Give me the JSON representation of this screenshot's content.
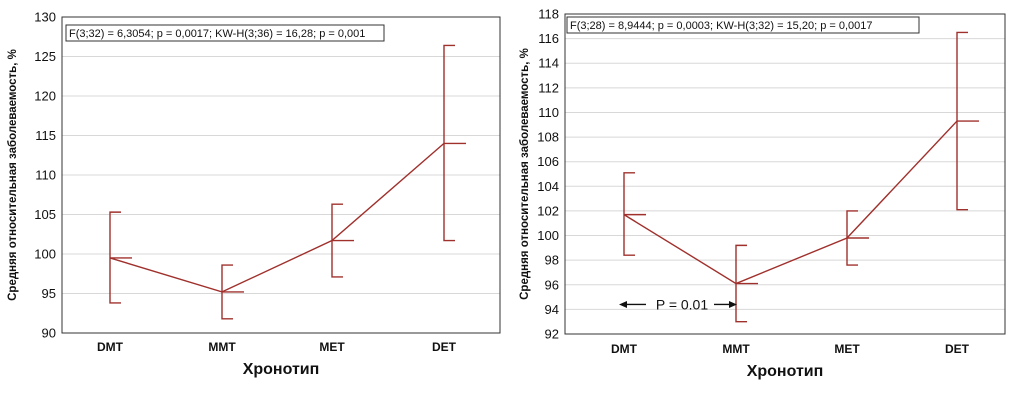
{
  "chart_data": [
    {
      "type": "line",
      "title": "",
      "stat_text": "F(3;32) = 6,3054; p = 0,0017; KW-H(3;36) = 16,28; p = 0,001",
      "xlabel": "Хронотип",
      "ylabel": "Средняя относительная заболеваемость, %",
      "categories": [
        "DMT",
        "MMT",
        "MET",
        "DET"
      ],
      "ylim": [
        90,
        130
      ],
      "yticks": [
        "90",
        "95",
        "100",
        "105",
        "110",
        "115",
        "120",
        "125",
        "130"
      ],
      "grid": true,
      "series": [
        {
          "values": [
            99.5,
            95.2,
            101.7,
            114.0
          ],
          "lower": [
            93.8,
            91.8,
            97.1,
            101.7
          ],
          "upper": [
            105.3,
            98.6,
            106.3,
            126.4
          ]
        }
      ],
      "colors": {
        "series": "#a0302c"
      }
    },
    {
      "type": "line",
      "title": "",
      "stat_text": "F(3;28) = 8,9444; p = 0,0003; KW-H(3;32) = 15,20; p = 0,0017",
      "xlabel": "Хронотип",
      "ylabel": "Средняя относительная заболеваемость, %",
      "categories": [
        "DMT",
        "MMT",
        "MET",
        "DET"
      ],
      "ylim": [
        92,
        118
      ],
      "yticks": [
        "92",
        "94",
        "96",
        "98",
        "100",
        "102",
        "104",
        "106",
        "108",
        "110",
        "112",
        "114",
        "116",
        "118"
      ],
      "grid": true,
      "annotation": "P = 0.01",
      "series": [
        {
          "values": [
            101.7,
            96.1,
            99.8,
            109.3
          ],
          "lower": [
            98.4,
            93.0,
            97.6,
            102.1
          ],
          "upper": [
            105.1,
            99.2,
            102.0,
            116.5
          ]
        }
      ],
      "colors": {
        "series": "#a0302c"
      }
    }
  ]
}
